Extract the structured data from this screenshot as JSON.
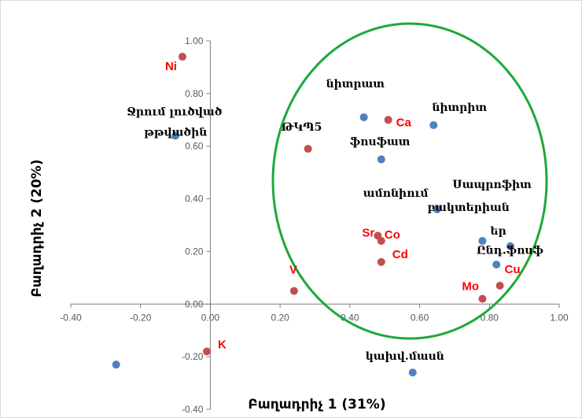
{
  "chart_data": {
    "type": "scatter",
    "xlabel": "Բաղադրիչ 1 (31%)",
    "ylabel": "Բաղադրիչ 2 (20%)",
    "xlim": [
      -0.4,
      1.0
    ],
    "ylim": [
      -0.4,
      1.0
    ],
    "xticks": [
      "-0.40",
      "-0.20",
      "0.00",
      "0.20",
      "0.40",
      "0.60",
      "0.80",
      "1.00"
    ],
    "yticks": [
      "-0.40",
      "-0.20",
      "0.00",
      "0.20",
      "0.40",
      "0.60",
      "0.80",
      "1.00"
    ],
    "grid": false,
    "legend": "none",
    "colors": {
      "metal": "#c0504d",
      "parameter": "#4f81bd",
      "ellipse": "#1ea83c",
      "label_red": "#ff0000"
    },
    "series": [
      {
        "points": [
          {
            "label": "Ni",
            "x": -0.08,
            "y": 0.94
          },
          {
            "label": "Ca",
            "x": 0.51,
            "y": 0.7
          },
          {
            "label": "ԹԿՊ5",
            "x": 0.28,
            "y": 0.59
          },
          {
            "label": "Sr",
            "x": 0.48,
            "y": 0.26
          },
          {
            "label": "Co",
            "x": 0.49,
            "y": 0.24
          },
          {
            "label": "Cd",
            "x": 0.49,
            "y": 0.16
          },
          {
            "label": "V",
            "x": 0.24,
            "y": 0.05
          },
          {
            "label": "Mo",
            "x": 0.78,
            "y": 0.02
          },
          {
            "label": "Cu",
            "x": 0.83,
            "y": 0.07
          },
          {
            "label": "K",
            "x": -0.01,
            "y": -0.18
          }
        ]
      },
      {
        "points": [
          {
            "label": "նիտրատ",
            "x": 0.44,
            "y": 0.71
          },
          {
            "label": "նիտրիտ",
            "x": 0.64,
            "y": 0.68
          },
          {
            "label": "Ջրում լուծված թթվածին",
            "x": -0.1,
            "y": 0.64
          },
          {
            "label": "ֆոսֆատ",
            "x": 0.49,
            "y": 0.55
          },
          {
            "label": "ամոնիում",
            "x": 0.65,
            "y": 0.36
          },
          {
            "label": "Սապրոֆիտ բակտերիաներ",
            "x": 0.78,
            "y": 0.24
          },
          {
            "label": "Ընդ.ֆոսֆ",
            "x": 0.86,
            "y": 0.22
          },
          {
            "label": "",
            "x": 0.82,
            "y": 0.15
          },
          {
            "label": "",
            "x": -0.27,
            "y": -0.23
          },
          {
            "label": "կախվ.մասն",
            "x": 0.58,
            "y": -0.26
          }
        ]
      }
    ]
  }
}
